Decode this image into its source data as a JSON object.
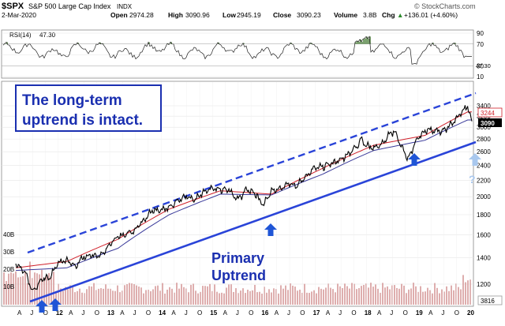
{
  "header": {
    "ticker": "$SPX",
    "name": "S&P 500 Large Cap Index",
    "exchange": "INDX",
    "date": "2-Mar-2020",
    "open_label": "Open",
    "open": "2974.28",
    "high_label": "High",
    "high": "3090.96",
    "low_label": "Low",
    "low": "2945.19",
    "close_label": "Close",
    "close": "3090.23",
    "volume_label": "Volume",
    "volume": "3.8B",
    "chg_label": "Chg",
    "chg": "+136.01 (+4.60%)",
    "chg_arrow": "▲",
    "watermark": "© StockCharts.com"
  },
  "rsi": {
    "label": "RSI(14)",
    "value_text": "47.30",
    "ticks": [
      "90",
      "70",
      "50",
      "30",
      "10"
    ],
    "right_value": "47.30"
  },
  "price_ticks": [
    "3400",
    "3200",
    "3000",
    "2800",
    "2600",
    "2400",
    "2200",
    "2000",
    "1800",
    "1600",
    "1400",
    "1200"
  ],
  "price_labels": {
    "upper": "3244",
    "close": "3090",
    "volume": "3816"
  },
  "volume_ticks": [
    "40B",
    "30B",
    "20B",
    "10B"
  ],
  "x_ticks": [
    "A",
    "J",
    "O",
    "12",
    "A",
    "J",
    "O",
    "13",
    "A",
    "J",
    "O",
    "14",
    "A",
    "J",
    "O",
    "15",
    "A",
    "J",
    "O",
    "16",
    "A",
    "J",
    "O",
    "17",
    "A",
    "J",
    "O",
    "18",
    "A",
    "J",
    "O",
    "19",
    "A",
    "J",
    "O",
    "20"
  ],
  "annotations": {
    "box_line1": "The long-term",
    "box_line2": "uptrend is intact.",
    "primary_line1": "Primary",
    "primary_line2": "Uptrend",
    "question": "?"
  },
  "colors": {
    "price_line": "#000000",
    "sma_short": "#d0202a",
    "sma_long": "#3a3a9a",
    "trend_line": "#2a44d8",
    "annotation_blue": "#1a2fb0",
    "arrow_blue": "#1f55d6",
    "light_arrow": "#a9c8ee",
    "volume_bar": "#d8a0a0",
    "rsi_fill": "#5a8a4a"
  },
  "chart_data": {
    "type": "line",
    "title": "$SPX S&P 500 Large Cap Index INDX",
    "y_scale": "log",
    "ylim": [
      1100,
      3600
    ],
    "x_range": [
      "2011-04",
      "2020-03"
    ],
    "series": [
      {
        "x": [
          "2011-04",
          "2011-06",
          "2011-08",
          "2011-10",
          "2011-12",
          "2012-02",
          "2012-04",
          "2012-06",
          "2012-08",
          "2012-10",
          "2012-12",
          "2013-02",
          "2013-04",
          "2013-06",
          "2013-08",
          "2013-10",
          "2013-12",
          "2014-02",
          "2014-04",
          "2014-06",
          "2014-08",
          "2014-10",
          "2014-12",
          "2015-02",
          "2015-04",
          "2015-06",
          "2015-08",
          "2015-10",
          "2015-12",
          "2016-02",
          "2016-04",
          "2016-06",
          "2016-08",
          "2016-10",
          "2016-12",
          "2017-02",
          "2017-04",
          "2017-06",
          "2017-08",
          "2017-10",
          "2017-12",
          "2018-01",
          "2018-02",
          "2018-04",
          "2018-06",
          "2018-08",
          "2018-09",
          "2018-10",
          "2018-12",
          "2019-02",
          "2019-04",
          "2019-06",
          "2019-08",
          "2019-10",
          "2019-12",
          "2020-02",
          "2020-03"
        ],
        "values": [
          1350,
          1300,
          1150,
          1230,
          1250,
          1360,
          1380,
          1330,
          1410,
          1420,
          1420,
          1515,
          1580,
          1610,
          1650,
          1750,
          1840,
          1850,
          1880,
          1960,
          2000,
          1960,
          2060,
          2100,
          2090,
          2090,
          1960,
          2080,
          2050,
          1900,
          2060,
          2100,
          2170,
          2130,
          2250,
          2360,
          2380,
          2430,
          2470,
          2570,
          2680,
          2820,
          2700,
          2660,
          2720,
          2900,
          2920,
          2750,
          2480,
          2780,
          2940,
          2950,
          2930,
          3040,
          3230,
          3380,
          3090
        ]
      },
      {
        "name": "SMA short",
        "x": [
          "2011-04",
          "2012-04",
          "2013-04",
          "2014-04",
          "2015-04",
          "2016-04",
          "2017-04",
          "2018-04",
          "2019-04",
          "2020-02"
        ],
        "values": [
          1320,
          1370,
          1560,
          1860,
          2070,
          2030,
          2360,
          2700,
          2860,
          3280
        ]
      },
      {
        "name": "SMA long",
        "x": [
          "2011-04",
          "2012-04",
          "2013-04",
          "2014-04",
          "2015-04",
          "2016-04",
          "2017-04",
          "2018-04",
          "2019-04",
          "2020-02"
        ],
        "values": [
          1300,
          1320,
          1480,
          1800,
          2030,
          2020,
          2280,
          2620,
          2780,
          3130
        ]
      }
    ],
    "rsi": {
      "label": "RSI(14)",
      "last": 47.3,
      "ylim": [
        10,
        90
      ],
      "ticks": [
        90,
        70,
        50,
        30,
        10
      ]
    },
    "volume_ticks": [
      "40B",
      "30B",
      "20B",
      "10B"
    ]
  }
}
